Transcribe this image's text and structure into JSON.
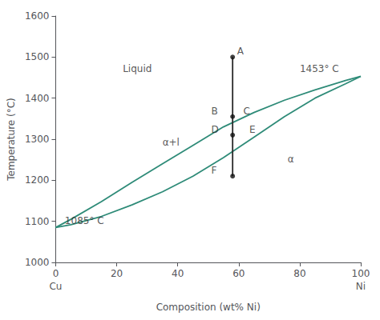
{
  "chart_data": {
    "type": "line",
    "xlabel": "Composition (wt% Ni)",
    "ylabel": "Temperature (°C)",
    "xlim": [
      0,
      100
    ],
    "ylim": [
      1000,
      1600
    ],
    "xticks": [
      0,
      20,
      40,
      60,
      80,
      100
    ],
    "yticks": [
      1000,
      1100,
      1200,
      1300,
      1400,
      1500,
      1600
    ],
    "grid": false,
    "series": [
      {
        "type": "line",
        "color": "#2e8b78",
        "x": [
          0,
          5,
          15,
          25,
          35,
          45,
          55,
          65,
          75,
          85,
          95,
          100
        ],
        "values": [
          1085,
          1105,
          1148,
          1195,
          1240,
          1285,
          1330,
          1365,
          1395,
          1420,
          1443,
          1453
        ]
      },
      {
        "type": "line",
        "color": "#2e8b78",
        "x": [
          0,
          5,
          15,
          25,
          35,
          45,
          55,
          65,
          75,
          85,
          95,
          100
        ],
        "values": [
          1085,
          1092,
          1112,
          1140,
          1172,
          1210,
          1255,
          1305,
          1355,
          1400,
          1435,
          1453
        ]
      },
      {
        "type": "line",
        "color": "#2a2a2a",
        "x": [
          58,
          58
        ],
        "values": [
          1210,
          1500
        ]
      },
      {
        "type": "scatter",
        "color": "#111111",
        "marker": "circle",
        "x": [
          58,
          58,
          58,
          58
        ],
        "values": [
          1500,
          1355,
          1310,
          1210
        ]
      }
    ],
    "annotations": [
      {
        "text": "A",
        "x": 59.5,
        "y": 1502,
        "color": "#2a2a2a"
      },
      {
        "text": "B",
        "x": 51,
        "y": 1357,
        "color": "#2a2a2a"
      },
      {
        "text": "C",
        "x": 61.5,
        "y": 1357,
        "color": "#2a2a2a"
      },
      {
        "text": "D",
        "x": 51,
        "y": 1312,
        "color": "#2a2a2a"
      },
      {
        "text": "E",
        "x": 63.5,
        "y": 1312,
        "color": "#2a2a2a"
      },
      {
        "text": "F",
        "x": 51,
        "y": 1212,
        "color": "#2a2a2a"
      },
      {
        "text": "Liquid",
        "x": 22,
        "y": 1460,
        "color": "#2a2a2a"
      },
      {
        "text": "α+l",
        "x": 35,
        "y": 1280,
        "color": "#2a2a2a"
      },
      {
        "text": "α",
        "x": 76,
        "y": 1240,
        "color": "#2a2a2a"
      },
      {
        "text": "1085° C",
        "x": 3,
        "y": 1090,
        "color": "#2a2a2a"
      },
      {
        "text": "1453° C",
        "x": 80,
        "y": 1460,
        "color": "#2a2a2a"
      },
      {
        "text": "Cu",
        "x": 0,
        "color": "#2a2a2a"
      },
      {
        "text": "Ni",
        "x": 100,
        "color": "#2a2a2a"
      }
    ]
  }
}
